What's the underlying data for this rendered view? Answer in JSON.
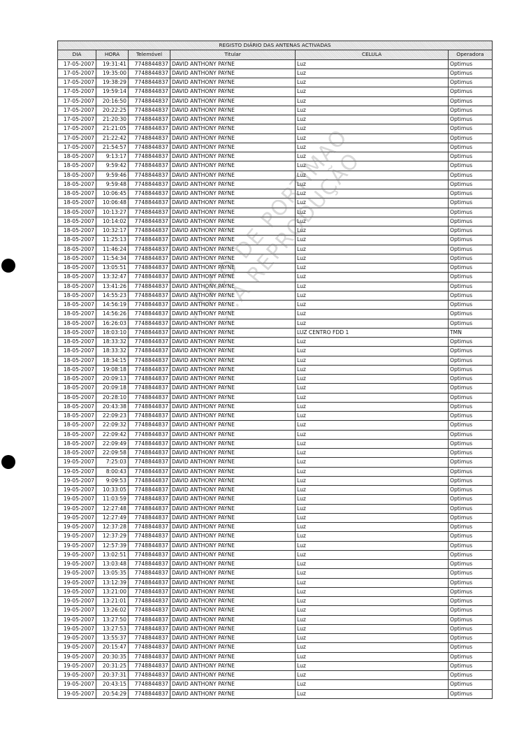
{
  "table": {
    "title": "REGISTO DIÁRIO DAS ANTENAS ACTIVADAS",
    "columns": [
      "DIA",
      "HORA",
      "Telemóvel",
      "Titular",
      "CELULA",
      "Operadora"
    ],
    "rows": [
      [
        "17-05-2007",
        "19:31:41",
        "7748844837",
        "DAVID ANTHONY PAYNE",
        "Luz",
        "Optimus"
      ],
      [
        "17-05-2007",
        "19:35:00",
        "7748844837",
        "DAVID ANTHONY PAYNE",
        "Luz",
        "Optimus"
      ],
      [
        "17-05-2007",
        "19:38:29",
        "7748844837",
        "DAVID ANTHONY PAYNE",
        "Luz",
        "Optimus"
      ],
      [
        "17-05-2007",
        "19:59:14",
        "7748844837",
        "DAVID ANTHONY PAYNE",
        "Luz",
        "Optimus"
      ],
      [
        "17-05-2007",
        "20:16:50",
        "7748844837",
        "DAVID ANTHONY PAYNE",
        "Luz",
        "Optimus"
      ],
      [
        "17-05-2007",
        "20:22:25",
        "7748844837",
        "DAVID ANTHONY PAYNE",
        "Luz",
        "Optimus"
      ],
      [
        "17-05-2007",
        "21:20:30",
        "7748844837",
        "DAVID ANTHONY PAYNE",
        "Luz",
        "Optimus"
      ],
      [
        "17-05-2007",
        "21:21:05",
        "7748844837",
        "DAVID ANTHONY PAYNE",
        "Luz",
        "Optimus"
      ],
      [
        "17-05-2007",
        "21:22:42",
        "7748844837",
        "DAVID ANTHONY PAYNE",
        "Luz",
        "Optimus"
      ],
      [
        "17-05-2007",
        "21:54:57",
        "7748844837",
        "DAVID ANTHONY PAYNE",
        "Luz",
        "Optimus"
      ],
      [
        "18-05-2007",
        "9:13:17",
        "7748844837",
        "DAVID ANTHONY PAYNE",
        "Luz",
        "Optimus"
      ],
      [
        "18-05-2007",
        "9:59:42",
        "7748844837",
        "DAVID ANTHONY PAYNE",
        "Luz",
        "Optimus"
      ],
      [
        "18-05-2007",
        "9:59:46",
        "7748844837",
        "DAVID ANTHONY PAYNE",
        "Luz",
        "Optimus"
      ],
      [
        "18-05-2007",
        "9:59:48",
        "7748844837",
        "DAVID ANTHONY PAYNE",
        "Luz",
        "Optimus"
      ],
      [
        "18-05-2007",
        "10:06:45",
        "7748844837",
        "DAVID ANTHONY PAYNE",
        "Luz",
        "Optimus"
      ],
      [
        "18-05-2007",
        "10:06:48",
        "7748844837",
        "DAVID ANTHONY PAYNE",
        "Luz",
        "Optimus"
      ],
      [
        "18-05-2007",
        "10:13:27",
        "7748844837",
        "DAVID ANTHONY PAYNE",
        "Luz",
        "Optimus"
      ],
      [
        "18-05-2007",
        "10:14:02",
        "7748844837",
        "DAVID ANTHONY PAYNE",
        "Luz",
        "Optimus"
      ],
      [
        "18-05-2007",
        "10:32:17",
        "7748844837",
        "DAVID ANTHONY PAYNE",
        "Luz",
        "Optimus"
      ],
      [
        "18-05-2007",
        "11:25:13",
        "7748844837",
        "DAVID ANTHONY PAYNE",
        "Luz",
        "Optimus"
      ],
      [
        "18-05-2007",
        "11:46:24",
        "7748844837",
        "DAVID ANTHONY PAYNE",
        "Luz",
        "Optimus"
      ],
      [
        "18-05-2007",
        "11:54:34",
        "7748844837",
        "DAVID ANTHONY PAYNE",
        "Luz",
        "Optimus"
      ],
      [
        "18-05-2007",
        "13:05:51",
        "7748844837",
        "DAVID ANTHONY PAYNE",
        "Luz",
        "Optimus"
      ],
      [
        "18-05-2007",
        "13:32:47",
        "7748844837",
        "DAVID ANTHONY PAYNE",
        "Luz",
        "Optimus"
      ],
      [
        "18-05-2007",
        "13:41:26",
        "7748844837",
        "DAVID ANTHONY PAYNE",
        "Luz",
        "Optimus"
      ],
      [
        "18-05-2007",
        "14:55:23",
        "7748844837",
        "DAVID ANTHONY PAYNE",
        "Luz",
        "Optimus"
      ],
      [
        "18-05-2007",
        "14:56:19",
        "7748844837",
        "DAVID ANTHONY PAYNE",
        "Luz",
        "Optimus"
      ],
      [
        "18-05-2007",
        "14:56:26",
        "7748844837",
        "DAVID ANTHONY PAYNE",
        "Luz",
        "Optimus"
      ],
      [
        "18-05-2007",
        "16:26:03",
        "7748844837",
        "DAVID ANTHONY PAYNE",
        "Luz",
        "Optimus"
      ],
      [
        "18-05-2007",
        "18:03:10",
        "7748844837",
        "DAVID ANTHONY PAYNE",
        "LUZ CENTRO FDD 1",
        "TMN"
      ],
      [
        "18-05-2007",
        "18:33:32",
        "7748844837",
        "DAVID ANTHONY PAYNE",
        "Luz",
        "Optimus"
      ],
      [
        "18-05-2007",
        "18:33:32",
        "7748844837",
        "DAVID ANTHONY PAYNE",
        "Luz",
        "Optimus"
      ],
      [
        "18-05-2007",
        "18:34:15",
        "7748844837",
        "DAVID ANTHONY PAYNE",
        "Luz",
        "Optimus"
      ],
      [
        "18-05-2007",
        "19:08:18",
        "7748844837",
        "DAVID ANTHONY PAYNE",
        "Luz",
        "Optimus"
      ],
      [
        "18-05-2007",
        "20:09:13",
        "7748844837",
        "DAVID ANTHONY PAYNE",
        "Luz",
        "Optimus"
      ],
      [
        "18-05-2007",
        "20:09:18",
        "7748844837",
        "DAVID ANTHONY PAYNE",
        "Luz",
        "Optimus"
      ],
      [
        "18-05-2007",
        "20:28:10",
        "7748844837",
        "DAVID ANTHONY PAYNE",
        "Luz",
        "Optimus"
      ],
      [
        "18-05-2007",
        "20:43:38",
        "7748844837",
        "DAVID ANTHONY PAYNE",
        "Luz",
        "Optimus"
      ],
      [
        "18-05-2007",
        "22:09:23",
        "7748844837",
        "DAVID ANTHONY PAYNE",
        "Luz",
        "Optimus"
      ],
      [
        "18-05-2007",
        "22:09:32",
        "7748844837",
        "DAVID ANTHONY PAYNE",
        "Luz",
        "Optimus"
      ],
      [
        "18-05-2007",
        "22:09:42",
        "7748844837",
        "DAVID ANTHONY PAYNE",
        "Luz",
        "Optimus"
      ],
      [
        "18-05-2007",
        "22:09:49",
        "7748844837",
        "DAVID ANTHONY PAYNE",
        "Luz",
        "Optimus"
      ],
      [
        "18-05-2007",
        "22:09:58",
        "7748844837",
        "DAVID ANTHONY PAYNE",
        "Luz",
        "Optimus"
      ],
      [
        "19-05-2007",
        "7:25:03",
        "7748844837",
        "DAVID ANTHONY PAYNE",
        "Luz",
        "Optimus"
      ],
      [
        "19-05-2007",
        "8:00:43",
        "7748844837",
        "DAVID ANTHONY PAYNE",
        "Luz",
        "Optimus"
      ],
      [
        "19-05-2007",
        "9:09:53",
        "7748844837",
        "DAVID ANTHONY PAYNE",
        "Luz",
        "Optimus"
      ],
      [
        "19-05-2007",
        "10:33:05",
        "7748844837",
        "DAVID ANTHONY PAYNE",
        "Luz",
        "Optimus"
      ],
      [
        "19-05-2007",
        "11:03:59",
        "7748844837",
        "DAVID ANTHONY PAYNE",
        "Luz",
        "Optimus"
      ],
      [
        "19-05-2007",
        "12:27:48",
        "7748844837",
        "DAVID ANTHONY PAYNE",
        "Luz",
        "Optimus"
      ],
      [
        "19-05-2007",
        "12:27:49",
        "7748844837",
        "DAVID ANTHONY PAYNE",
        "Luz",
        "Optimus"
      ],
      [
        "19-05-2007",
        "12:37:28",
        "7748844837",
        "DAVID ANTHONY PAYNE",
        "Luz",
        "Optimus"
      ],
      [
        "19-05-2007",
        "12:37:29",
        "7748844837",
        "DAVID ANTHONY PAYNE",
        "Luz",
        "Optimus"
      ],
      [
        "19-05-2007",
        "12:57:39",
        "7748844837",
        "DAVID ANTHONY PAYNE",
        "Luz",
        "Optimus"
      ],
      [
        "19-05-2007",
        "13:02:51",
        "7748844837",
        "DAVID ANTHONY PAYNE",
        "Luz",
        "Optimus"
      ],
      [
        "19-05-2007",
        "13:03:48",
        "7748844837",
        "DAVID ANTHONY PAYNE",
        "Luz",
        "Optimus"
      ],
      [
        "19-05-2007",
        "13:05:35",
        "7748844837",
        "DAVID ANTHONY PAYNE",
        "Luz",
        "Optimus"
      ],
      [
        "19-05-2007",
        "13:12:39",
        "7748844837",
        "DAVID ANTHONY PAYNE",
        "Luz",
        "Optimus"
      ],
      [
        "19-05-2007",
        "13:21:00",
        "7748844837",
        "DAVID ANTHONY PAYNE",
        "Luz",
        "Optimus"
      ],
      [
        "19-05-2007",
        "13:21:01",
        "7748844837",
        "DAVID ANTHONY PAYNE",
        "Luz",
        "Optimus"
      ],
      [
        "19-05-2007",
        "13:26:02",
        "7748844837",
        "DAVID ANTHONY PAYNE",
        "Luz",
        "Optimus"
      ],
      [
        "19-05-2007",
        "13:27:50",
        "7748844837",
        "DAVID ANTHONY PAYNE",
        "Luz",
        "Optimus"
      ],
      [
        "19-05-2007",
        "13:27:53",
        "7748844837",
        "DAVID ANTHONY PAYNE",
        "Luz",
        "Optimus"
      ],
      [
        "19-05-2007",
        "13:55:37",
        "7748844837",
        "DAVID ANTHONY PAYNE",
        "Luz",
        "Optimus"
      ],
      [
        "19-05-2007",
        "20:15:47",
        "7748844837",
        "DAVID ANTHONY PAYNE",
        "Luz",
        "Optimus"
      ],
      [
        "19-05-2007",
        "20:30:35",
        "7748844837",
        "DAVID ANTHONY PAYNE",
        "Luz",
        "Optimus"
      ],
      [
        "19-05-2007",
        "20:31:25",
        "7748844837",
        "DAVID ANTHONY PAYNE",
        "Luz",
        "Optimus"
      ],
      [
        "19-05-2007",
        "20:37:31",
        "7748844837",
        "DAVID ANTHONY PAYNE",
        "Luz",
        "Optimus"
      ],
      [
        "19-05-2007",
        "20:43:15",
        "7748844837",
        "DAVID ANTHONY PAYNE",
        "Luz",
        "Optimus"
      ],
      [
        "19-05-2007",
        "20:54:29",
        "7748844837",
        "DAVID ANTHONY PAYNE",
        "Luz",
        "Optimus"
      ]
    ]
  },
  "watermark": {
    "line1": "...LICO DE PORTIMAO",
    "line2": "...A REPRODUÇÃO"
  }
}
